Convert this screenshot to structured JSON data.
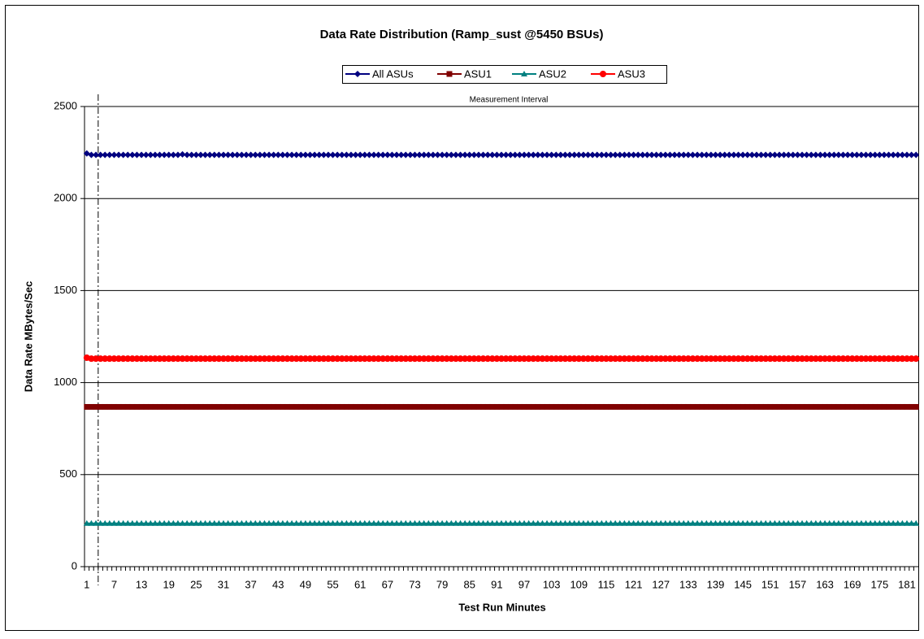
{
  "chart_data": {
    "type": "line",
    "title": "Data Rate Distribution (Ramp_sust @5450 BSUs)",
    "x_label": "Test Run Minutes",
    "y_label": "Data Rate MBytes/Sec",
    "annotation": "Measurement Interval",
    "ylim": [
      0,
      2500
    ],
    "yticks": [
      0,
      500,
      1000,
      1500,
      2000,
      2500
    ],
    "grid": true,
    "legend": "top",
    "categories": [
      "1",
      null,
      null,
      null,
      null,
      null,
      "7",
      null,
      null,
      null,
      null,
      null,
      "13",
      null,
      null,
      null,
      null,
      null,
      "19",
      null,
      null,
      null,
      null,
      null,
      "25",
      null,
      null,
      null,
      null,
      null,
      "31",
      null,
      null,
      null,
      null,
      null,
      "37",
      null,
      null,
      null,
      null,
      null,
      "43",
      null,
      null,
      null,
      null,
      null,
      "49",
      null,
      null,
      null,
      null,
      null,
      "55",
      null,
      null,
      null,
      null,
      null,
      "61",
      null,
      null,
      null,
      null,
      null,
      "67",
      null,
      null,
      null,
      null,
      null,
      "73",
      null,
      null,
      null,
      null,
      null,
      "79",
      null,
      null,
      null,
      null,
      null,
      "85",
      null,
      null,
      null,
      null,
      null,
      "91",
      null,
      null,
      null,
      null,
      null,
      "97",
      null,
      null,
      null,
      null,
      null,
      "103",
      null,
      null,
      null,
      null,
      null,
      "109",
      null,
      null,
      null,
      null,
      null,
      "115",
      null,
      null,
      null,
      null,
      null,
      "121",
      null,
      null,
      null,
      null,
      null,
      "127",
      null,
      null,
      null,
      null,
      null,
      "133",
      null,
      null,
      null,
      null,
      null,
      "139",
      null,
      null,
      null,
      null,
      null,
      "145",
      null,
      null,
      null,
      null,
      null,
      "151",
      null,
      null,
      null,
      null,
      null,
      "157",
      null,
      null,
      null,
      null,
      null,
      "163",
      null,
      null,
      null,
      null,
      null,
      "169",
      null,
      null,
      null,
      null,
      null,
      "175",
      null,
      null,
      null,
      null,
      null,
      "181",
      null,
      null
    ],
    "series": [
      {
        "name": "All ASUs",
        "color": "#000080",
        "marker": "diamond",
        "values": [
          2245,
          2237,
          2237,
          2237,
          2237,
          2237,
          2237,
          2237,
          2237,
          2237,
          2237,
          2237,
          2237,
          2237,
          2237,
          2237,
          2237,
          2237,
          2237,
          2237,
          2237,
          2240,
          2237,
          2237,
          2237,
          2237,
          2237,
          2237,
          2237,
          2237,
          2237,
          2237,
          2237,
          2237,
          2237,
          2237,
          2237,
          2237,
          2237,
          2237,
          2237,
          2237,
          2237,
          2237,
          2237,
          2237,
          2237,
          2237,
          2237,
          2237,
          2237,
          2237,
          2237,
          2237,
          2237,
          2237,
          2237,
          2237,
          2237,
          2237,
          2237,
          2237,
          2237,
          2237,
          2237,
          2237,
          2237,
          2237,
          2237,
          2237,
          2237,
          2237,
          2237,
          2237,
          2237,
          2237,
          2237,
          2237,
          2237,
          2237,
          2237,
          2237,
          2237,
          2237,
          2237,
          2237,
          2237,
          2237,
          2237,
          2237,
          2237,
          2237,
          2237,
          2237,
          2237,
          2237,
          2237,
          2237,
          2237,
          2237,
          2237,
          2237,
          2237,
          2237,
          2237,
          2237,
          2237,
          2237,
          2237,
          2237,
          2237,
          2237,
          2237,
          2237,
          2237,
          2237,
          2237,
          2237,
          2237,
          2237,
          2237,
          2237,
          2237,
          2237,
          2237,
          2237,
          2237,
          2237,
          2237,
          2237,
          2237,
          2237,
          2237,
          2237,
          2237,
          2237,
          2237,
          2237,
          2237,
          2237,
          2237,
          2237,
          2237,
          2237,
          2237,
          2237,
          2237,
          2237,
          2237,
          2237,
          2237,
          2237,
          2237,
          2237,
          2237,
          2237,
          2237,
          2237,
          2237,
          2237,
          2237,
          2237,
          2237,
          2237,
          2237,
          2237,
          2237,
          2237,
          2237,
          2237,
          2237,
          2237,
          2237,
          2237,
          2237,
          2237,
          2237,
          2237,
          2237,
          2237,
          2237,
          2237,
          2237
        ]
      },
      {
        "name": "ASU1",
        "color": "#800000",
        "marker": "square",
        "values": [
          868,
          868,
          868,
          868,
          868,
          868,
          868,
          868,
          868,
          868,
          868,
          868,
          868,
          868,
          868,
          868,
          868,
          868,
          868,
          868,
          868,
          868,
          868,
          868,
          868,
          868,
          868,
          868,
          868,
          868,
          868,
          868,
          868,
          868,
          868,
          868,
          868,
          868,
          868,
          868,
          868,
          868,
          868,
          868,
          868,
          868,
          868,
          868,
          868,
          868,
          868,
          868,
          868,
          868,
          868,
          868,
          868,
          868,
          868,
          868,
          868,
          868,
          868,
          868,
          868,
          868,
          868,
          868,
          868,
          868,
          868,
          868,
          868,
          868,
          868,
          868,
          868,
          868,
          868,
          868,
          868,
          868,
          868,
          868,
          868,
          868,
          868,
          868,
          868,
          868,
          868,
          868,
          868,
          868,
          868,
          868,
          868,
          868,
          868,
          868,
          868,
          868,
          868,
          868,
          868,
          868,
          868,
          868,
          868,
          868,
          868,
          868,
          868,
          868,
          868,
          868,
          868,
          868,
          868,
          868,
          868,
          868,
          868,
          868,
          868,
          868,
          868,
          868,
          868,
          868,
          868,
          868,
          868,
          868,
          868,
          868,
          868,
          868,
          868,
          868,
          868,
          868,
          868,
          868,
          868,
          868,
          868,
          868,
          868,
          868,
          868,
          868,
          868,
          868,
          868,
          868,
          868,
          868,
          868,
          868,
          868,
          868,
          868,
          868,
          868,
          868,
          868,
          868,
          868,
          868,
          868,
          868,
          868,
          868,
          868,
          868,
          868,
          868,
          868,
          868,
          868,
          868,
          868
        ]
      },
      {
        "name": "ASU2",
        "color": "#008080",
        "marker": "triangle",
        "values": [
          235,
          235,
          235,
          235,
          235,
          235,
          235,
          235,
          235,
          235,
          235,
          235,
          235,
          235,
          235,
          235,
          235,
          235,
          235,
          235,
          235,
          235,
          235,
          235,
          235,
          235,
          235,
          235,
          235,
          235,
          235,
          235,
          235,
          235,
          235,
          235,
          235,
          235,
          235,
          235,
          235,
          235,
          235,
          235,
          235,
          235,
          235,
          235,
          235,
          235,
          235,
          235,
          235,
          235,
          235,
          235,
          235,
          235,
          235,
          235,
          235,
          235,
          235,
          235,
          235,
          235,
          235,
          235,
          235,
          235,
          235,
          235,
          235,
          235,
          235,
          235,
          235,
          235,
          235,
          235,
          235,
          235,
          235,
          235,
          235,
          235,
          235,
          235,
          235,
          235,
          235,
          235,
          235,
          235,
          235,
          235,
          235,
          235,
          235,
          235,
          235,
          235,
          235,
          235,
          235,
          235,
          235,
          235,
          235,
          235,
          235,
          235,
          235,
          235,
          235,
          235,
          235,
          235,
          235,
          235,
          235,
          235,
          235,
          235,
          235,
          235,
          235,
          235,
          235,
          235,
          235,
          235,
          235,
          235,
          235,
          235,
          235,
          235,
          235,
          235,
          235,
          235,
          235,
          235,
          235,
          235,
          235,
          235,
          235,
          235,
          235,
          235,
          235,
          235,
          235,
          235,
          235,
          235,
          235,
          235,
          235,
          235,
          235,
          235,
          235,
          235,
          235,
          235,
          235,
          235,
          235,
          235,
          235,
          235,
          235,
          235,
          235,
          235,
          235,
          235,
          235,
          235,
          235
        ]
      },
      {
        "name": "ASU3",
        "color": "#ff0000",
        "marker": "circle",
        "values": [
          1135,
          1130,
          1130,
          1130,
          1130,
          1130,
          1130,
          1130,
          1130,
          1130,
          1130,
          1130,
          1130,
          1130,
          1130,
          1130,
          1130,
          1130,
          1130,
          1130,
          1130,
          1130,
          1130,
          1130,
          1130,
          1130,
          1130,
          1130,
          1130,
          1130,
          1130,
          1130,
          1130,
          1130,
          1130,
          1130,
          1130,
          1130,
          1130,
          1130,
          1130,
          1130,
          1130,
          1130,
          1130,
          1130,
          1130,
          1130,
          1130,
          1130,
          1130,
          1130,
          1130,
          1130,
          1130,
          1130,
          1130,
          1130,
          1130,
          1130,
          1130,
          1130,
          1130,
          1130,
          1130,
          1130,
          1130,
          1130,
          1130,
          1130,
          1130,
          1130,
          1130,
          1130,
          1130,
          1130,
          1130,
          1130,
          1130,
          1130,
          1130,
          1130,
          1130,
          1130,
          1130,
          1130,
          1130,
          1130,
          1130,
          1130,
          1130,
          1130,
          1130,
          1130,
          1130,
          1130,
          1130,
          1130,
          1130,
          1130,
          1130,
          1130,
          1130,
          1130,
          1130,
          1130,
          1130,
          1130,
          1130,
          1130,
          1130,
          1130,
          1130,
          1130,
          1130,
          1130,
          1130,
          1130,
          1130,
          1130,
          1130,
          1130,
          1130,
          1130,
          1130,
          1130,
          1130,
          1130,
          1130,
          1130,
          1130,
          1130,
          1130,
          1130,
          1130,
          1130,
          1130,
          1130,
          1130,
          1130,
          1130,
          1130,
          1130,
          1130,
          1130,
          1130,
          1130,
          1130,
          1130,
          1130,
          1130,
          1130,
          1130,
          1130,
          1130,
          1130,
          1130,
          1130,
          1130,
          1130,
          1130,
          1130,
          1130,
          1130,
          1130,
          1130,
          1130,
          1130,
          1130,
          1130,
          1130,
          1130,
          1130,
          1130,
          1130,
          1130,
          1130,
          1130,
          1130,
          1130,
          1130,
          1130,
          1130
        ]
      }
    ]
  }
}
